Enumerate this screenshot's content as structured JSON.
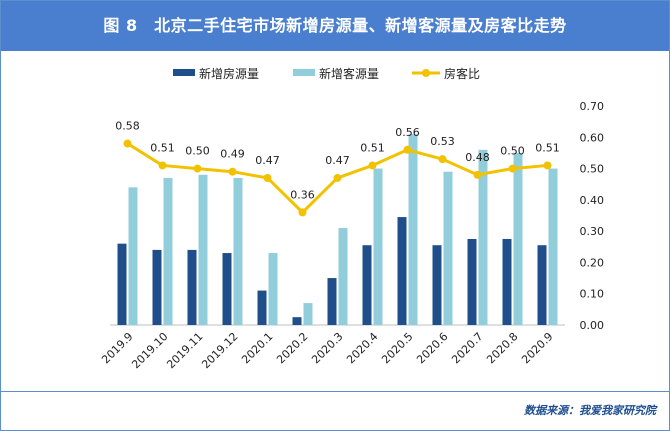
{
  "title": "图 8　北京二手住宅市场新增房源量、新增客源量及房客比走势",
  "source": "数据来源：我爱我家研究院",
  "colors": {
    "title_bg": "#4a7fcf",
    "listings": "#1f4e8a",
    "customers": "#92cddc",
    "ratio": "#f2c200"
  },
  "chart_data": {
    "type": "bar+line",
    "categories": [
      "2019.9",
      "2019.10",
      "2019.11",
      "2019.12",
      "2020.1",
      "2020.2",
      "2020.3",
      "2020.4",
      "2020.5",
      "2020.6",
      "2020.7",
      "2020.8",
      "2020.9"
    ],
    "series": [
      {
        "name": "新增房源量",
        "type": "bar",
        "values": [
          0.26,
          0.24,
          0.24,
          0.23,
          0.11,
          0.025,
          0.15,
          0.255,
          0.345,
          0.255,
          0.275,
          0.275,
          0.255
        ]
      },
      {
        "name": "新增客源量",
        "type": "bar",
        "values": [
          0.44,
          0.47,
          0.48,
          0.47,
          0.23,
          0.07,
          0.31,
          0.5,
          0.61,
          0.49,
          0.56,
          0.55,
          0.5
        ]
      },
      {
        "name": "房客比",
        "type": "line",
        "values": [
          0.58,
          0.51,
          0.5,
          0.49,
          0.47,
          0.36,
          0.47,
          0.51,
          0.56,
          0.53,
          0.48,
          0.5,
          0.51
        ],
        "labels": [
          "0.58",
          "0.51",
          "0.50",
          "0.49",
          "0.47",
          "0.36",
          "0.47",
          "0.51",
          "0.56",
          "0.53",
          "0.48",
          "0.50",
          "0.51"
        ]
      }
    ],
    "y_right": {
      "min": 0,
      "max": 0.7,
      "ticks": [
        "0.00",
        "0.10",
        "0.20",
        "0.30",
        "0.40",
        "0.50",
        "0.60",
        "0.70"
      ]
    },
    "legend": [
      "新增房源量",
      "新增客源量",
      "房客比"
    ],
    "legend_position": "top"
  }
}
